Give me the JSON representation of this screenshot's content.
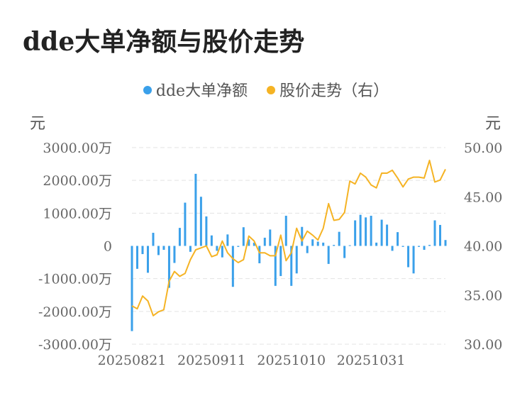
{
  "title": "dde大单净额与股价走势",
  "legend": [
    {
      "name": "dde大单净额",
      "color": "#3aa0ea"
    },
    {
      "name": "股价走势（右）",
      "color": "#f5b324"
    }
  ],
  "units": {
    "left": "元",
    "right": "元"
  },
  "chart_data": {
    "type": "bar+line",
    "x_tick_labels": [
      "20250821",
      "20250911",
      "20251010",
      "20251031"
    ],
    "x_tick_indices": [
      0,
      15,
      30,
      45
    ],
    "y_left": {
      "min": -3000,
      "max": 3000,
      "ticks": [
        3000,
        2000,
        1000,
        0,
        -1000,
        -2000,
        -3000
      ],
      "tick_labels": [
        "3000.00万",
        "2000.00万",
        "1000.00万",
        "0",
        "-1000.00万",
        "-2000.00万",
        "-3000.00万"
      ]
    },
    "y_right": {
      "min": 30,
      "max": 50,
      "ticks": [
        50,
        45,
        40,
        35,
        30
      ],
      "tick_labels": [
        "50.00",
        "45.00",
        "40.00",
        "35.00",
        "30.00"
      ]
    },
    "grid": true,
    "series": [
      {
        "name": "dde大单净额",
        "type": "bar",
        "axis": "left",
        "color": "#3aa0ea",
        "values": [
          -2600,
          -700,
          -250,
          -820,
          400,
          -280,
          -120,
          -1280,
          -520,
          550,
          1320,
          -180,
          2200,
          1500,
          900,
          320,
          -150,
          -350,
          350,
          -1250,
          -30,
          570,
          200,
          100,
          -530,
          250,
          500,
          -1220,
          -920,
          920,
          -1220,
          -840,
          580,
          -220,
          200,
          130,
          100,
          -550,
          30,
          430,
          -370,
          20,
          780,
          950,
          870,
          920,
          100,
          800,
          650,
          -150,
          420,
          -30,
          -650,
          -840,
          -30,
          -120,
          30,
          780,
          640,
          180
        ],
        "unit": "万"
      },
      {
        "name": "股价走势（右）",
        "type": "line",
        "axis": "right",
        "color": "#f5b324",
        "values": [
          33.9,
          33.6,
          34.9,
          34.4,
          32.9,
          33.3,
          33.5,
          36.4,
          37.4,
          36.9,
          37.2,
          38.6,
          39.6,
          39.8,
          40.0,
          38.9,
          39.1,
          40.5,
          39.3,
          38.7,
          38.3,
          38.6,
          41.0,
          40.5,
          39.3,
          39.3,
          39.0,
          39.0,
          41.1,
          38.5,
          39.3,
          41.8,
          40.5,
          41.5,
          41.1,
          40.6,
          41.8,
          44.3,
          42.6,
          42.7,
          43.4,
          46.6,
          46.3,
          47.4,
          47.0,
          46.2,
          45.9,
          47.4,
          47.4,
          47.7,
          46.9,
          46.0,
          46.8,
          47.0,
          47.0,
          46.9,
          48.7,
          46.5,
          46.7,
          47.8
        ]
      }
    ]
  }
}
